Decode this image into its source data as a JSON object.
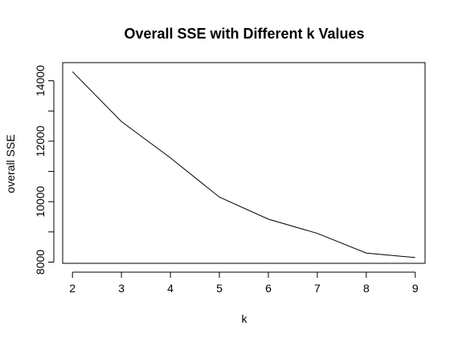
{
  "chart_data": {
    "type": "line",
    "title": "Overall SSE with Different k Values",
    "xlabel": "k",
    "ylabel": "overall SSE",
    "x": [
      2,
      3,
      4,
      5,
      6,
      7,
      8,
      9
    ],
    "y": [
      14300,
      12650,
      11450,
      10150,
      9420,
      8950,
      8300,
      8150
    ],
    "xlim": [
      1.8,
      9.2
    ],
    "ylim": [
      7960,
      14600
    ],
    "x_ticks": [
      2,
      3,
      4,
      5,
      6,
      7,
      8,
      9
    ],
    "y_ticks": [
      8000,
      10000,
      12000,
      14000
    ],
    "grid": false,
    "line_color": "#000000"
  }
}
